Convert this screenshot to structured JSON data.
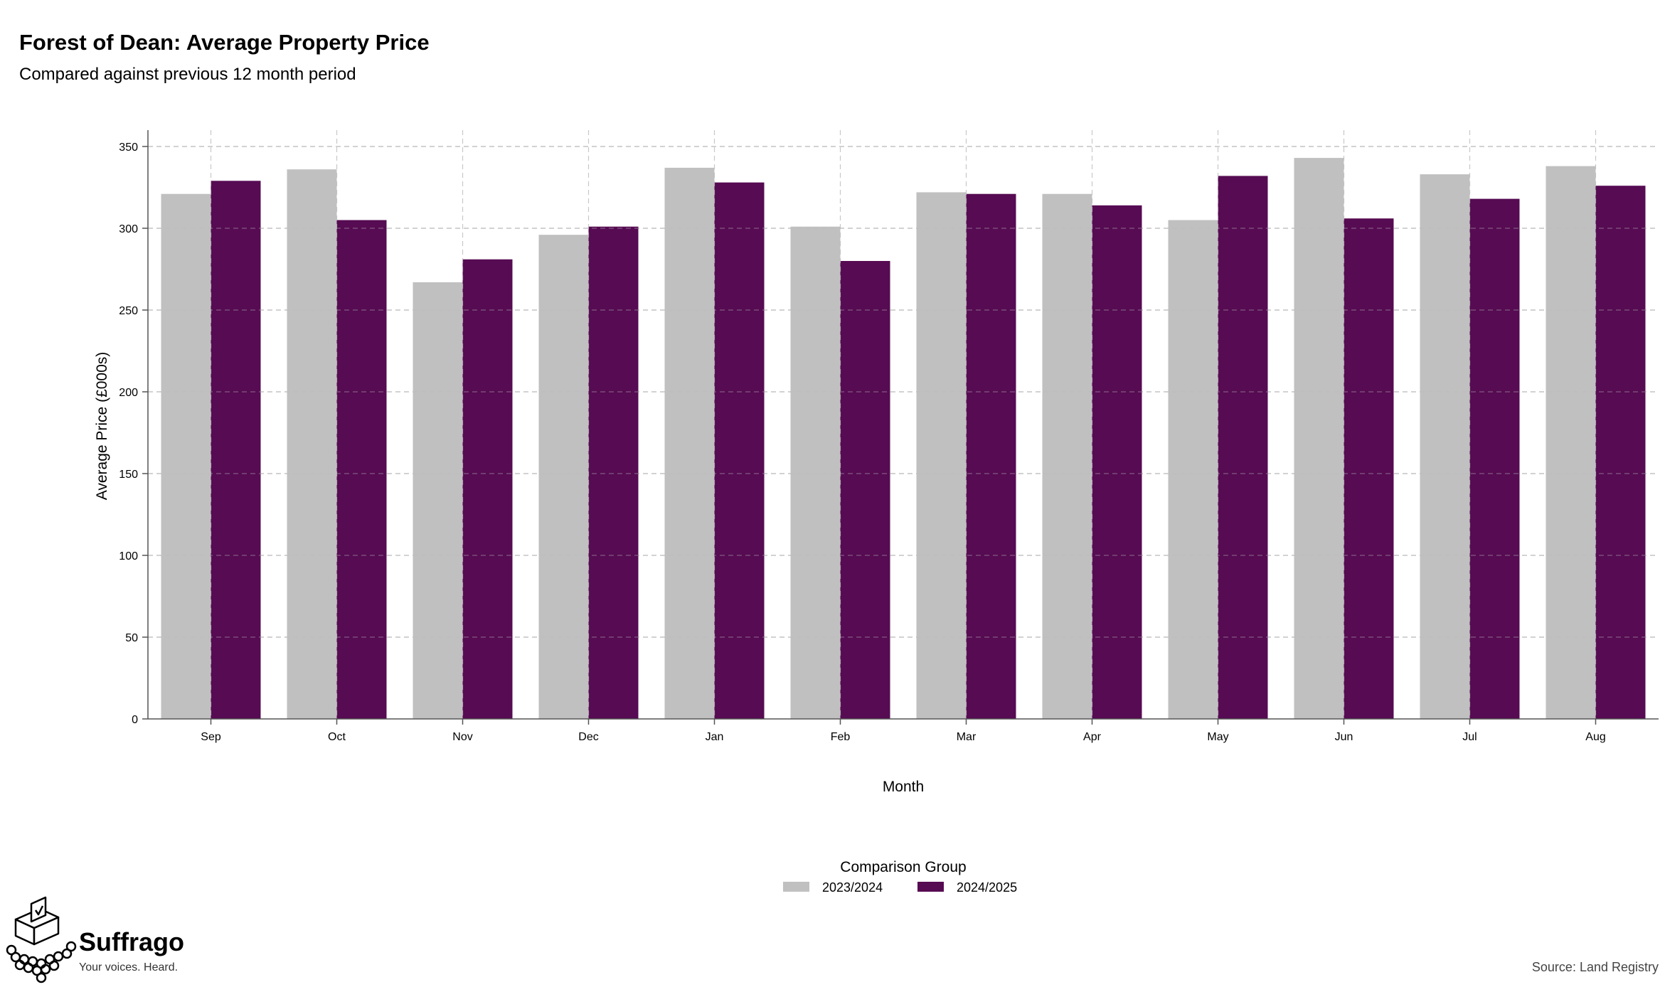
{
  "chart_data": {
    "type": "bar",
    "title": "Forest of Dean: Average Property Price",
    "subtitle": "Compared against previous 12 month period",
    "xlabel": "Month",
    "ylabel": "Average Price (£000s)",
    "ylim": [
      0,
      360
    ],
    "yticks": [
      0,
      50,
      100,
      150,
      200,
      250,
      300,
      350
    ],
    "grid": true,
    "categories": [
      "Sep",
      "Oct",
      "Nov",
      "Dec",
      "Jan",
      "Feb",
      "Mar",
      "Apr",
      "May",
      "Jun",
      "Jul",
      "Aug"
    ],
    "series": [
      {
        "name": "2023/2024",
        "color": "#c0c0c0",
        "values": [
          321,
          336,
          267,
          296,
          337,
          301,
          322,
          321,
          305,
          343,
          333,
          338
        ]
      },
      {
        "name": "2024/2025",
        "color": "#560b52",
        "values": [
          329,
          305,
          281,
          301,
          328,
          280,
          321,
          314,
          332,
          306,
          318,
          326
        ]
      }
    ],
    "legend": {
      "title": "Comparison Group",
      "placement": "bottom"
    }
  },
  "branding": {
    "logo_icon": "ballot-box-icon",
    "name": "Suffrago",
    "tagline": "Your voices. Heard."
  },
  "source": "Source: Land Registry"
}
